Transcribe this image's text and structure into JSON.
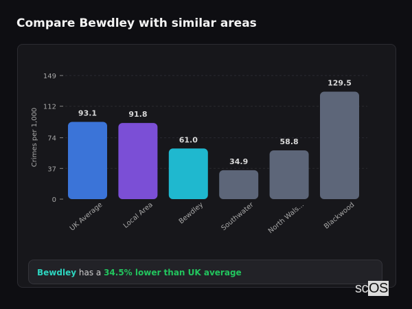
{
  "title": "Compare Bewdley with similar areas",
  "chart_data": {
    "type": "bar",
    "ylabel": "Crimes per 1,000",
    "ylim": [
      0,
      149
    ],
    "yticks": [
      0,
      37,
      74,
      112,
      149
    ],
    "grid": true,
    "categories": [
      "UK Average",
      "Local Area",
      "Bewdley",
      "Southwater",
      "North Wals...",
      "Blackwood"
    ],
    "values": [
      93.1,
      91.8,
      61.0,
      34.9,
      58.8,
      129.5
    ],
    "value_labels": [
      "93.1",
      "91.8",
      "61.0",
      "34.9",
      "58.8",
      "129.5"
    ],
    "colors": [
      "#3b74d8",
      "#7b4fd6",
      "#1fb8cf",
      "#5d6679",
      "#5d6679",
      "#5d6679"
    ]
  },
  "summary": {
    "location": "Bewdley",
    "middle": " has a ",
    "highlight": "34.5% lower than UK average"
  },
  "logo": "scOS"
}
